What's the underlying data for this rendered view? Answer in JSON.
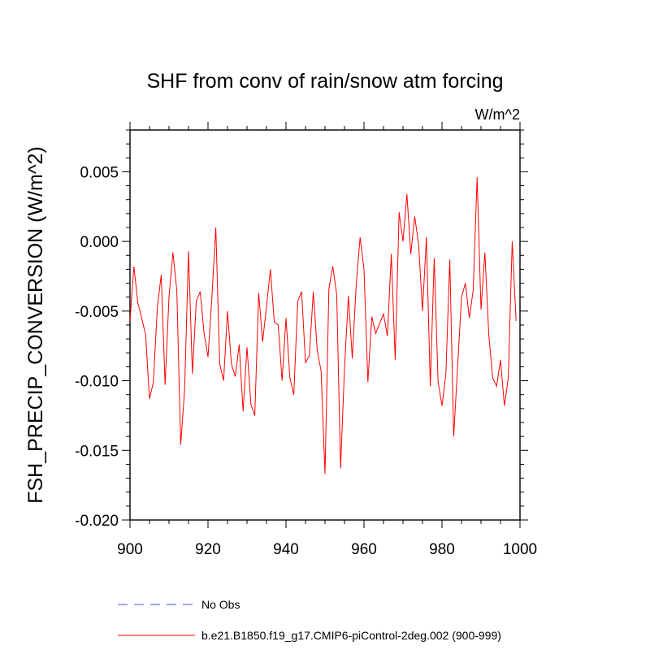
{
  "chart_data": {
    "type": "line",
    "title": "SHF from conv of rain/snow atm forcing",
    "units_label": "W/m^2",
    "xlabel": "",
    "ylabel": "FSH_PRECIP_CONVERSION  (W/m^2)",
    "xlim": [
      900,
      1000
    ],
    "ylim": [
      -0.02,
      0.008
    ],
    "xticks": [
      900,
      920,
      940,
      960,
      980,
      1000
    ],
    "xtick_labels": [
      "900",
      "920",
      "940",
      "960",
      "980",
      "1000"
    ],
    "yticks": [
      -0.02,
      -0.015,
      -0.01,
      -0.005,
      0.0,
      0.005
    ],
    "ytick_labels": [
      "-0.020",
      "-0.015",
      "-0.010",
      "-0.005",
      "0.000",
      "0.005"
    ],
    "grid": false,
    "legend_position": "bottom",
    "series": [
      {
        "name": "No Obs",
        "color": "#4a4aff",
        "dashed": true,
        "x": [],
        "values": []
      },
      {
        "name": "b.e21.B1850.f19_g17.CMIP6-piControl-2deg.002 (900-999)",
        "color": "#ff0000",
        "dashed": false,
        "x": [
          900,
          901,
          902,
          903,
          904,
          905,
          906,
          907,
          908,
          909,
          910,
          911,
          912,
          913,
          914,
          915,
          916,
          917,
          918,
          919,
          920,
          921,
          922,
          923,
          924,
          925,
          926,
          927,
          928,
          929,
          930,
          931,
          932,
          933,
          934,
          935,
          936,
          937,
          938,
          939,
          940,
          941,
          942,
          943,
          944,
          945,
          946,
          947,
          948,
          949,
          950,
          951,
          952,
          953,
          954,
          955,
          956,
          957,
          958,
          959,
          960,
          961,
          962,
          963,
          964,
          965,
          966,
          967,
          968,
          969,
          970,
          971,
          972,
          973,
          974,
          975,
          976,
          977,
          978,
          979,
          980,
          981,
          982,
          983,
          984,
          985,
          986,
          987,
          988,
          989,
          990,
          991,
          992,
          993,
          994,
          995,
          996,
          997,
          998,
          999
        ],
        "values": [
          -0.0057,
          -0.0018,
          -0.0044,
          -0.0055,
          -0.0067,
          -0.0113,
          -0.0101,
          -0.0048,
          -0.0024,
          -0.0103,
          -0.004,
          -0.0008,
          -0.0035,
          -0.0146,
          -0.0107,
          -0.0007,
          -0.0095,
          -0.0043,
          -0.0036,
          -0.0066,
          -0.0083,
          -0.004,
          0.001,
          -0.0088,
          -0.01,
          -0.005,
          -0.0088,
          -0.0097,
          -0.0074,
          -0.0122,
          -0.0076,
          -0.0117,
          -0.0125,
          -0.0037,
          -0.0072,
          -0.0047,
          -0.002,
          -0.0058,
          -0.006,
          -0.01,
          -0.0055,
          -0.0098,
          -0.011,
          -0.0043,
          -0.0036,
          -0.0087,
          -0.0082,
          -0.0036,
          -0.0078,
          -0.0093,
          -0.0167,
          -0.0034,
          -0.0018,
          -0.0038,
          -0.0163,
          -0.0091,
          -0.0039,
          -0.0084,
          -0.0031,
          0.0003,
          -0.002,
          -0.0101,
          -0.0054,
          -0.0066,
          -0.0059,
          -0.0052,
          -0.0068,
          -0.0009,
          -0.0085,
          0.0021,
          0.0,
          0.0034,
          -0.0009,
          0.0018,
          -0.0002,
          -0.005,
          0.0003,
          -0.0104,
          -0.0012,
          -0.0101,
          -0.0118,
          -0.0095,
          -0.0013,
          -0.014,
          -0.009,
          -0.004,
          -0.003,
          -0.0055,
          -0.0035,
          0.0046,
          -0.0049,
          -0.0008,
          -0.0067,
          -0.0098,
          -0.0104,
          -0.0085,
          -0.0118,
          -0.0098,
          0.0,
          -0.0057
        ]
      }
    ]
  }
}
